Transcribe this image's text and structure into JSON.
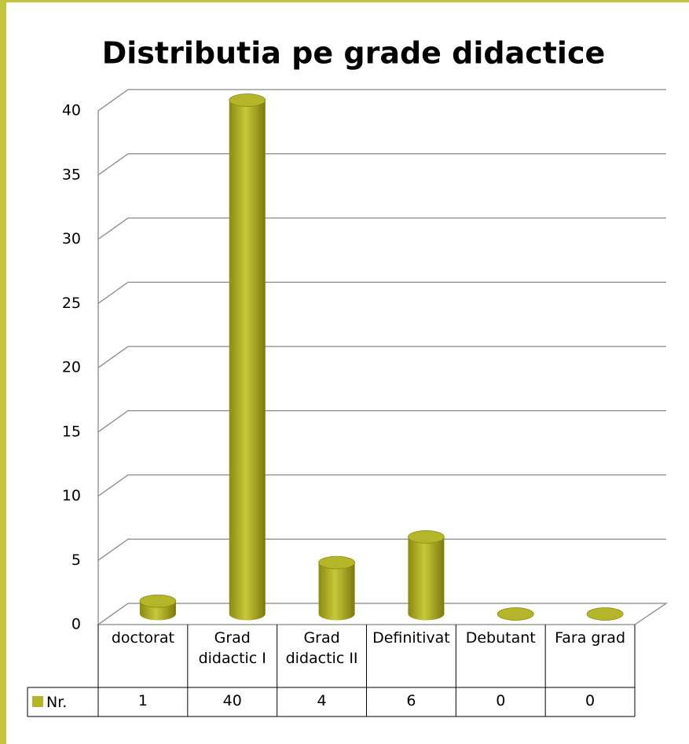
{
  "chart_data": {
    "type": "bar3d",
    "title": "Distributia pe grade didactice",
    "categories": [
      "doctorat",
      "Grad didactic I",
      "Grad didactic II",
      "Definitivat",
      "Debutant",
      "Fara grad"
    ],
    "series": [
      {
        "name": "Nr.",
        "color": "#b5b52a",
        "values": [
          1,
          40,
          4,
          6,
          0,
          0
        ]
      }
    ],
    "ylim": [
      0,
      40
    ],
    "yticks": [
      0,
      5,
      10,
      15,
      20,
      25,
      30,
      35,
      40
    ],
    "grid": true
  }
}
